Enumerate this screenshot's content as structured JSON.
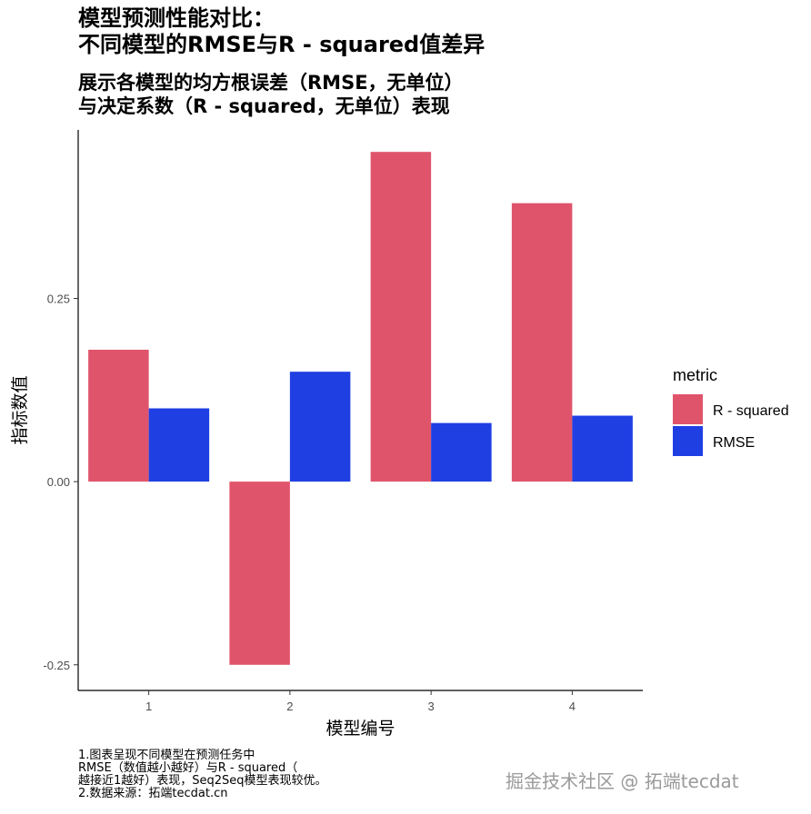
{
  "chart_data": {
    "type": "bar",
    "title": [
      "模型预测性能对比：",
      "不同模型的RMSE与R - squared值差异"
    ],
    "subtitle": [
      "展示各模型的均方根误差（RMSE，无单位）",
      "与决定系数（R - squared，无单位）表现"
    ],
    "xlabel": "模型编号",
    "ylabel": "指标数值",
    "categories": [
      "1",
      "2",
      "3",
      "4"
    ],
    "series": [
      {
        "name": "R - squared",
        "values": [
          0.18,
          -0.25,
          0.45,
          0.38
        ],
        "color": "#E0546B"
      },
      {
        "name": "RMSE",
        "values": [
          0.1,
          0.15,
          0.08,
          0.09
        ],
        "color": "#1F3FE3"
      }
    ],
    "yticks": [
      -0.25,
      0.0,
      0.25
    ],
    "ytick_labels": [
      "-0.25",
      "0.00",
      "0.25"
    ],
    "ylim": [
      -0.285,
      0.48
    ],
    "legend": {
      "title": "metric",
      "position": "right"
    },
    "grid": false,
    "caption": [
      "1.图表呈现不同模型在预测任务中",
      "RMSE（数值越小越好）与R - squared（",
      "越接近1越好）表现，Seq2Seq模型表现较优。",
      "2.数据来源：拓端tecdat.cn"
    ]
  },
  "watermark": "掘金技术社区 @ 拓端tecdat"
}
